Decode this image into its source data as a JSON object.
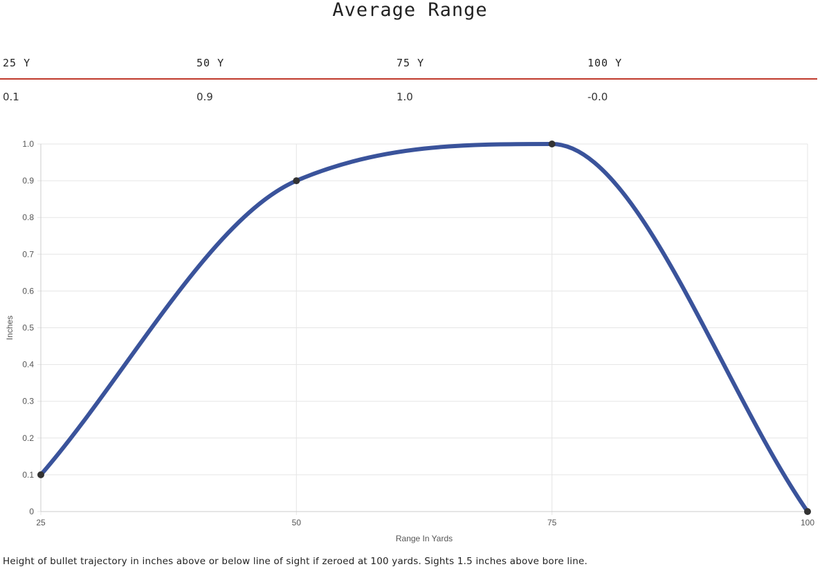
{
  "title": "Average Range",
  "table": {
    "headers": [
      "25 Y",
      "50 Y",
      "75 Y",
      "100 Y"
    ],
    "values": [
      "0.1",
      "0.9",
      "1.0",
      "-0.0"
    ]
  },
  "caption": "Height of bullet trajectory in inches above or below line of sight if zeroed at 100 yards. Sights 1.5 inches above bore line.",
  "colors": {
    "line": "#3a539b",
    "point": "#333333",
    "rule": "#c0392b",
    "grid": "#e5e5e5"
  },
  "chart_data": {
    "type": "line",
    "title": "",
    "x": [
      25,
      50,
      75,
      100
    ],
    "x_tick_labels": [
      "25",
      "50",
      "75",
      "100"
    ],
    "series": [
      {
        "values": [
          0.1,
          0.9,
          1.0,
          0.0
        ]
      }
    ],
    "y_ticks": [
      0,
      0.1,
      0.2,
      0.3,
      0.4,
      0.5,
      0.6,
      0.7,
      0.8,
      0.9,
      1.0
    ],
    "y_tick_labels": [
      "0",
      "0.1",
      "0.2",
      "0.3",
      "0.4",
      "0.5",
      "0.6",
      "0.7",
      "0.8",
      "0.9",
      "1.0"
    ],
    "xlabel": "Range In Yards",
    "ylabel": "Inches",
    "xlim": [
      25,
      100
    ],
    "ylim": [
      0,
      1.0
    ],
    "grid": true,
    "smooth": true
  }
}
